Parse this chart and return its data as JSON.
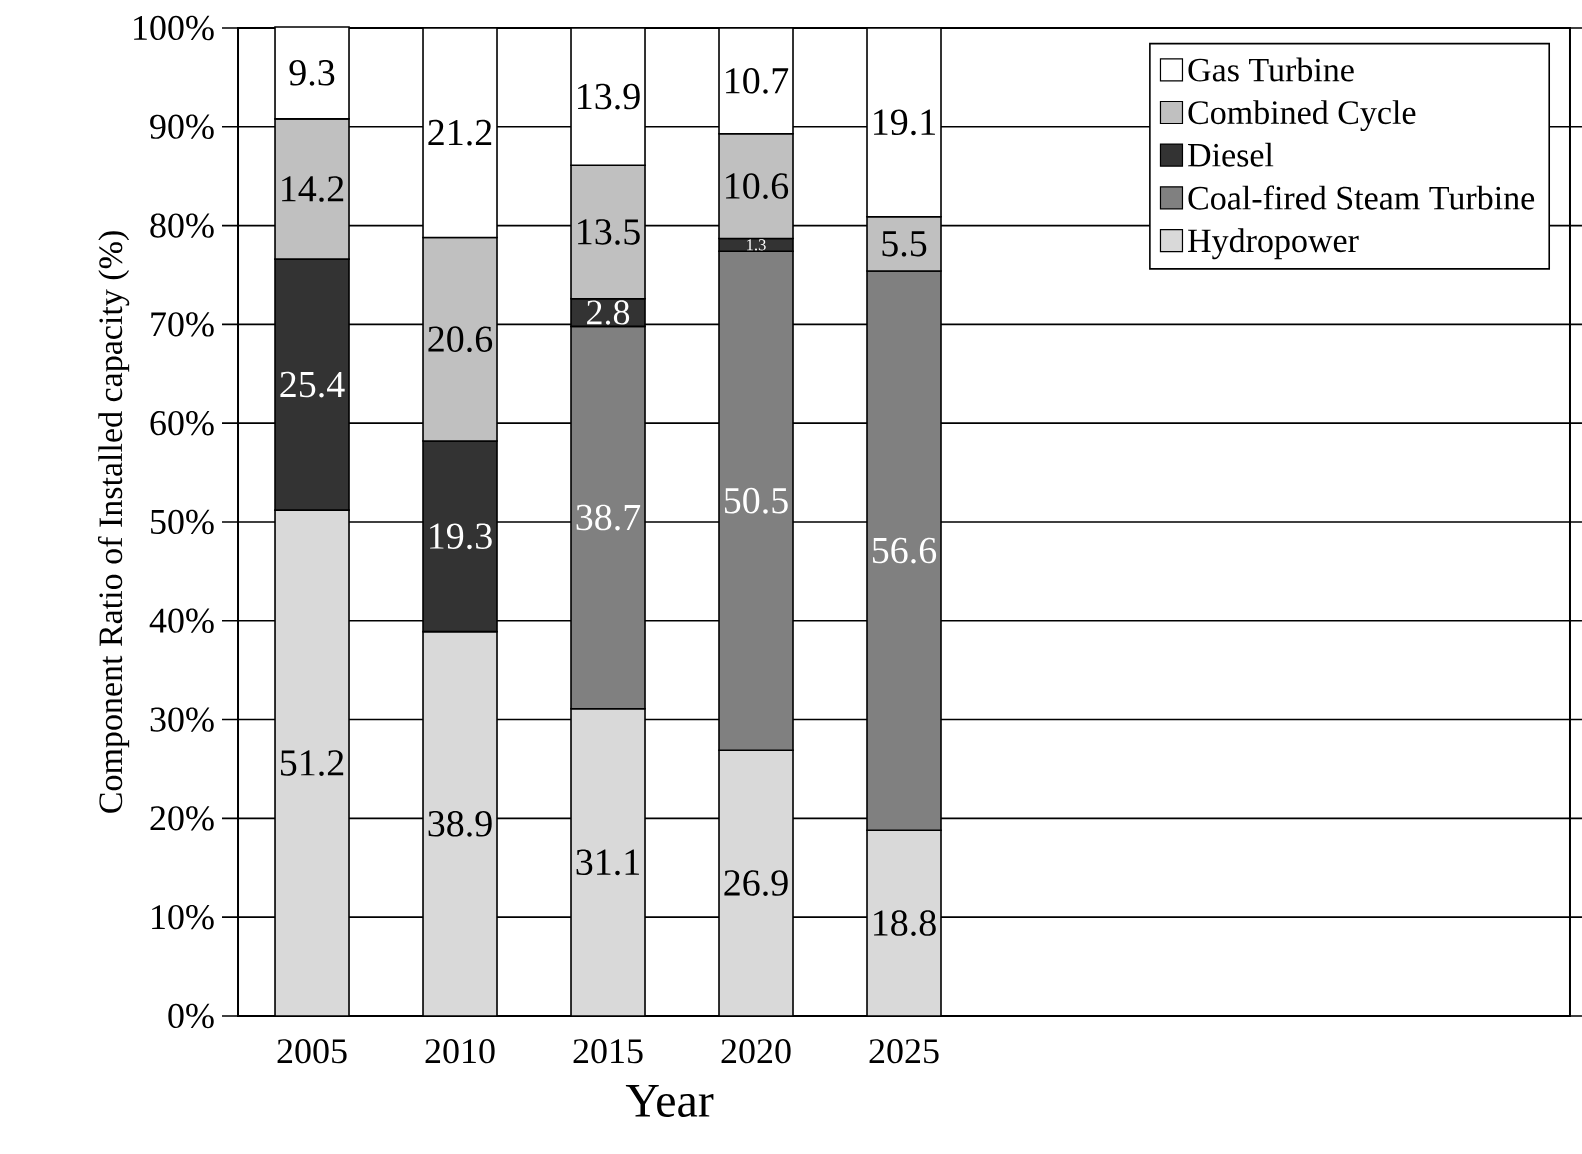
{
  "chart_data": {
    "type": "bar",
    "stacked": true,
    "xlabel": "Year",
    "ylabel": "Component Ratio of Installed capacity (%)",
    "categories": [
      "2005",
      "2010",
      "2015",
      "2020",
      "2025",
      null,
      null,
      null,
      null
    ],
    "series": [
      {
        "name": "Hydropower",
        "color": "#d9d9d9",
        "values": [
          51.2,
          38.9,
          31.1,
          26.9,
          18.8,
          null,
          null,
          null,
          null
        ]
      },
      {
        "name": "Coal-fired Steam Turbine",
        "color": "#808080",
        "values": [
          null,
          null,
          38.7,
          50.5,
          56.6,
          null,
          null,
          null,
          null
        ]
      },
      {
        "name": "Diesel",
        "color": "#333333",
        "values": [
          25.4,
          19.3,
          2.8,
          1.3,
          null,
          null,
          null,
          null,
          null
        ]
      },
      {
        "name": "Combined Cycle",
        "color": "#c0c0c0",
        "values": [
          14.2,
          20.6,
          13.5,
          10.6,
          5.5,
          null,
          null,
          null,
          null
        ]
      },
      {
        "name": "Gas Turbine",
        "color": "#ffffff",
        "values": [
          9.3,
          21.2,
          13.9,
          10.7,
          19.1,
          null,
          null,
          null,
          null
        ]
      }
    ],
    "ylim": [
      0,
      100
    ],
    "yticks": [
      {
        "value": 0,
        "label": "0%"
      },
      {
        "value": 10,
        "label": "10%"
      },
      {
        "value": 20,
        "label": "20%"
      },
      {
        "value": 30,
        "label": "30%"
      },
      {
        "value": 40,
        "label": "40%"
      },
      {
        "value": 50,
        "label": "50%"
      },
      {
        "value": 60,
        "label": "60%"
      },
      {
        "value": 70,
        "label": "70%"
      },
      {
        "value": 80,
        "label": "80%"
      },
      {
        "value": 90,
        "label": "90%"
      },
      {
        "value": 100,
        "label": "100%"
      }
    ],
    "grid": "y",
    "legend": "top right",
    "data_labels": true
  }
}
